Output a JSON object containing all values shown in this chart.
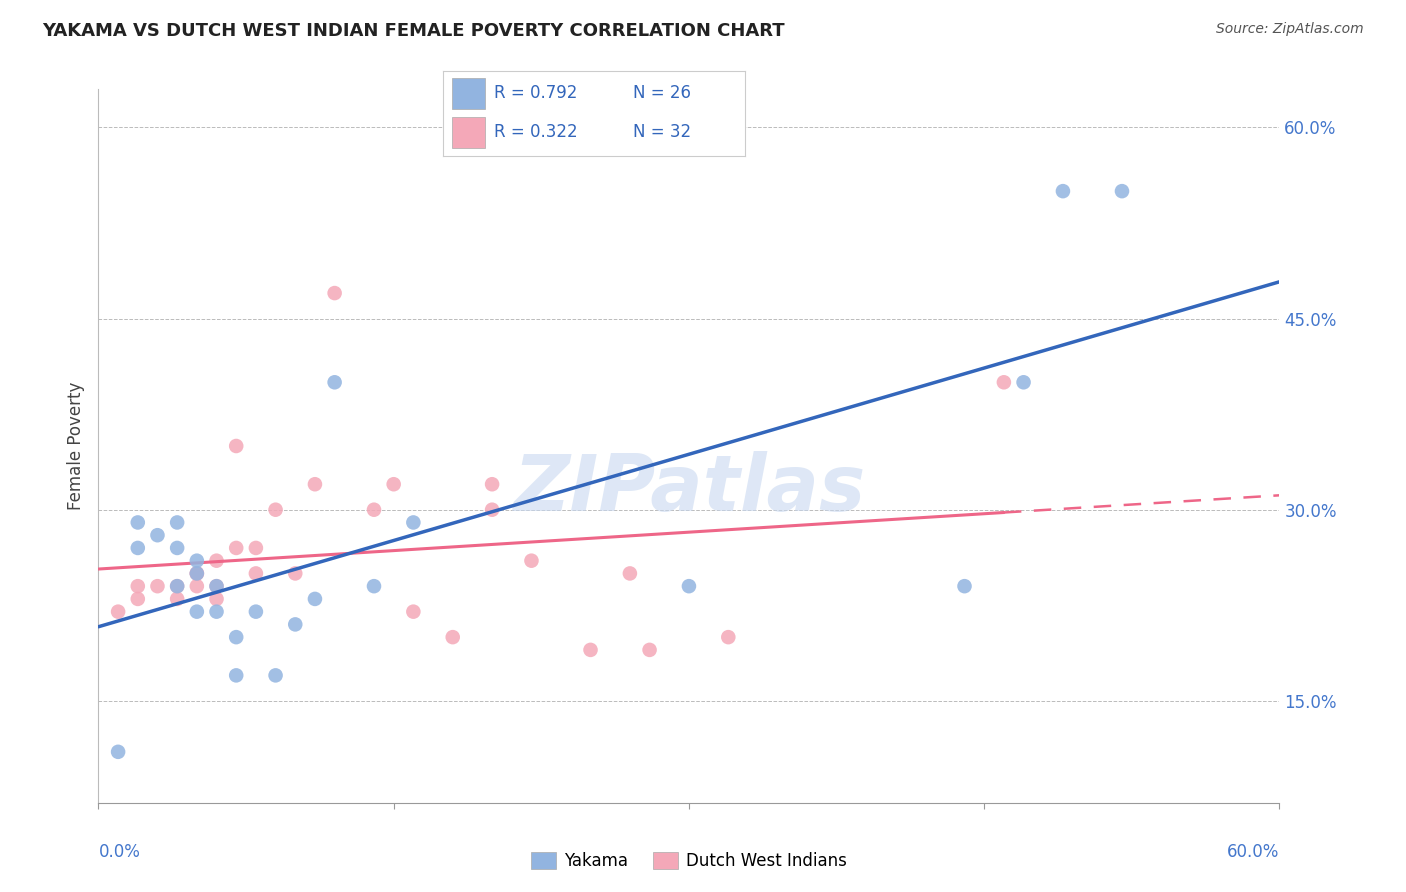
{
  "title": "YAKAMA VS DUTCH WEST INDIAN FEMALE POVERTY CORRELATION CHART",
  "source": "Source: ZipAtlas.com",
  "ylabel": "Female Poverty",
  "watermark": "ZIPatlas",
  "yakama_R": 0.792,
  "yakama_N": 26,
  "dwi_R": 0.322,
  "dwi_N": 32,
  "x_min": 0.0,
  "x_max": 0.6,
  "y_min": 0.07,
  "y_max": 0.63,
  "yticks": [
    0.15,
    0.3,
    0.45,
    0.6
  ],
  "ytick_labels": [
    "15.0%",
    "30.0%",
    "45.0%",
    "60.0%"
  ],
  "yakama_color": "#92b4e0",
  "dwi_color": "#f4a8b8",
  "yakama_line_color": "#3366BB",
  "dwi_line_color": "#EE6688",
  "yakama_x": [
    0.01,
    0.02,
    0.02,
    0.03,
    0.04,
    0.04,
    0.04,
    0.05,
    0.05,
    0.05,
    0.06,
    0.06,
    0.07,
    0.07,
    0.08,
    0.09,
    0.1,
    0.11,
    0.12,
    0.14,
    0.16,
    0.3,
    0.44,
    0.47,
    0.49,
    0.52
  ],
  "yakama_y": [
    0.11,
    0.27,
    0.29,
    0.28,
    0.29,
    0.27,
    0.24,
    0.26,
    0.25,
    0.22,
    0.24,
    0.22,
    0.2,
    0.17,
    0.22,
    0.17,
    0.21,
    0.23,
    0.4,
    0.24,
    0.29,
    0.24,
    0.24,
    0.4,
    0.55,
    0.55
  ],
  "dwi_x": [
    0.01,
    0.02,
    0.02,
    0.03,
    0.04,
    0.04,
    0.05,
    0.05,
    0.05,
    0.06,
    0.06,
    0.06,
    0.07,
    0.07,
    0.08,
    0.08,
    0.09,
    0.1,
    0.11,
    0.12,
    0.14,
    0.15,
    0.16,
    0.18,
    0.2,
    0.2,
    0.22,
    0.25,
    0.27,
    0.28,
    0.32,
    0.46
  ],
  "dwi_y": [
    0.22,
    0.24,
    0.23,
    0.24,
    0.24,
    0.23,
    0.25,
    0.24,
    0.25,
    0.24,
    0.26,
    0.23,
    0.27,
    0.35,
    0.25,
    0.27,
    0.3,
    0.25,
    0.32,
    0.47,
    0.3,
    0.32,
    0.22,
    0.2,
    0.3,
    0.32,
    0.26,
    0.19,
    0.25,
    0.19,
    0.2,
    0.4
  ]
}
